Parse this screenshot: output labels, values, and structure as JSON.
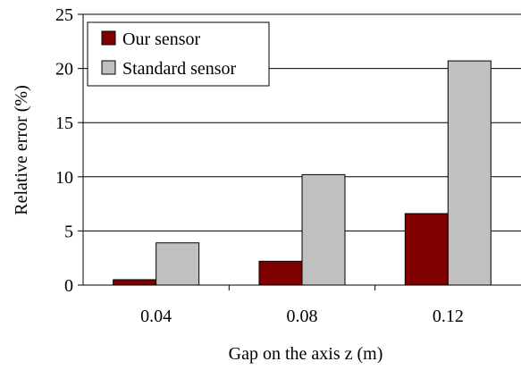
{
  "chart_data": {
    "type": "bar",
    "title": "",
    "xlabel": "Gap on the axis z (m)",
    "ylabel": "Relative error (%)",
    "categories": [
      "0.04",
      "0.08",
      "0.12"
    ],
    "ylim": [
      0,
      25
    ],
    "yticks": [
      "0",
      "5",
      "10",
      "15",
      "20",
      "25"
    ],
    "grid": "horizontal",
    "legend_position": "top-left",
    "series": [
      {
        "name": "Our sensor",
        "values": [
          0.5,
          2.2,
          6.6
        ],
        "color": "#800000"
      },
      {
        "name": "Standard sensor",
        "values": [
          3.9,
          10.2,
          20.7
        ],
        "color": "#c0c0c0"
      }
    ]
  }
}
